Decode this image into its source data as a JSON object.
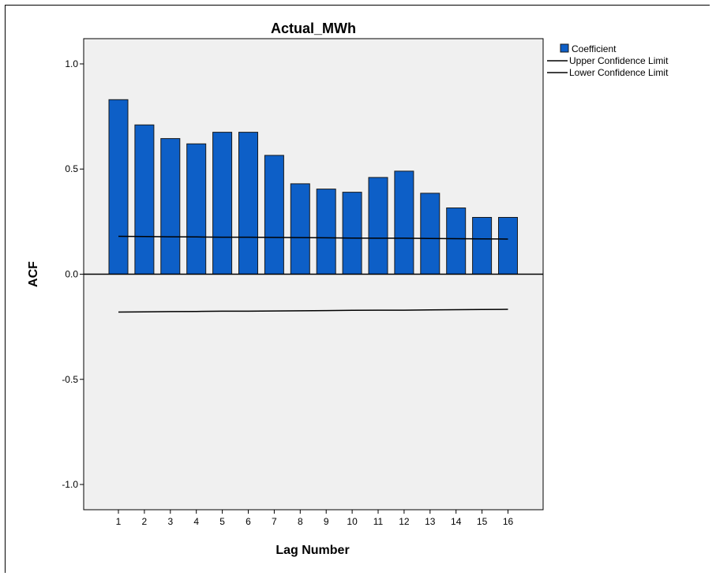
{
  "chart_data": {
    "type": "bar",
    "title": "Actual_MWh",
    "xlabel": "Lag Number",
    "ylabel": "ACF",
    "categories": [
      "1",
      "2",
      "3",
      "4",
      "5",
      "6",
      "7",
      "8",
      "9",
      "10",
      "11",
      "12",
      "13",
      "14",
      "15",
      "16"
    ],
    "series": [
      {
        "name": "Coefficient",
        "type": "bar",
        "values": [
          0.83,
          0.71,
          0.645,
          0.62,
          0.675,
          0.675,
          0.565,
          0.43,
          0.405,
          0.39,
          0.46,
          0.49,
          0.385,
          0.315,
          0.27,
          0.27
        ]
      },
      {
        "name": "Upper Confidence Limit",
        "type": "line",
        "values": [
          0.18,
          0.179,
          0.178,
          0.177,
          0.176,
          0.176,
          0.175,
          0.174,
          0.173,
          0.172,
          0.171,
          0.171,
          0.17,
          0.169,
          0.168,
          0.167
        ]
      },
      {
        "name": "Lower Confidence Limit",
        "type": "line",
        "values": [
          -0.18,
          -0.179,
          -0.178,
          -0.177,
          -0.176,
          -0.176,
          -0.175,
          -0.174,
          -0.173,
          -0.172,
          -0.171,
          -0.171,
          -0.17,
          -0.169,
          -0.168,
          -0.167
        ]
      }
    ],
    "ylim": [
      -1.12,
      1.12
    ],
    "yticks": [
      "-1.0",
      "-0.5",
      "0.0",
      "0.5",
      "1.0"
    ],
    "ytick_values": [
      -1.0,
      -0.5,
      0.0,
      0.5,
      1.0
    ],
    "legend_position": "top-right",
    "grid": false,
    "colors": {
      "bar": "#0d5fc7",
      "bar_border": "#1a1a1a",
      "plot_bg": "#f0f0f0",
      "line": "#000000"
    }
  }
}
